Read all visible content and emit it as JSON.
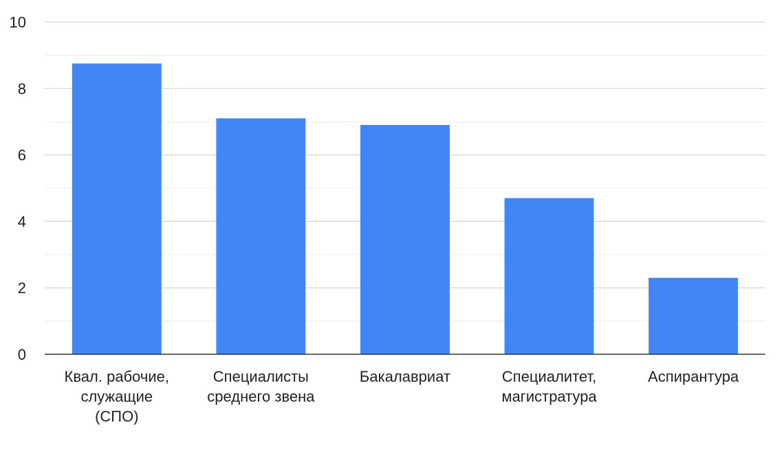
{
  "chart_data": {
    "type": "bar",
    "categories": [
      [
        "Квал. рабочие,",
        "служащие",
        "(СПО)"
      ],
      [
        "Специалисты",
        "среднего звена"
      ],
      [
        "Бакалавриат"
      ],
      [
        "Специалитет,",
        "магистратура"
      ],
      [
        "Аспирантура"
      ]
    ],
    "values": [
      8.75,
      7.1,
      6.9,
      4.7,
      2.3
    ],
    "ylim": [
      0,
      10
    ],
    "y_ticks": [
      0,
      2,
      4,
      6,
      8,
      10
    ],
    "y_minor_ticks": [
      1,
      3,
      5,
      7,
      9
    ],
    "title": "",
    "xlabel": "",
    "ylabel": "",
    "grid": true,
    "legend": "none",
    "colors": {
      "bar": "#4285f4",
      "major_grid": "#cccccc",
      "minor_grid": "#ebebeb",
      "axis": "#333333",
      "text": "#222222"
    }
  }
}
